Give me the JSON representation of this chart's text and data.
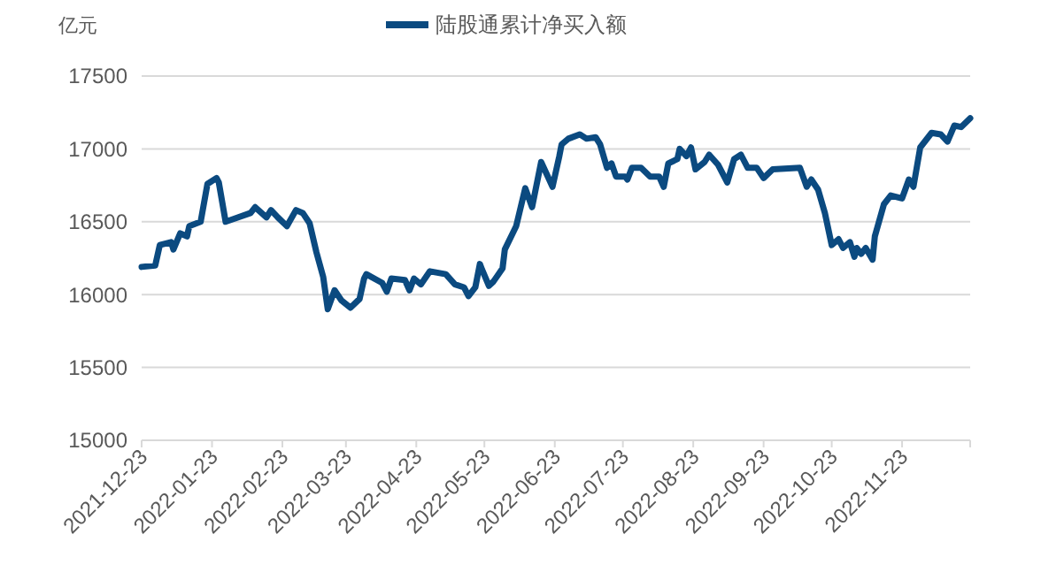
{
  "chart_data": {
    "type": "line",
    "ylabel": "亿元",
    "legend": "top",
    "grid": "y",
    "marker": "none",
    "line_style": "solid",
    "xlim": [
      "2021-12-23",
      "2022-12-23"
    ],
    "xticks": [
      {
        "value": "2021-12-23",
        "label": "2021-12-23"
      },
      {
        "value": "2022-01-23",
        "label": "2022-01-23"
      },
      {
        "value": "2022-02-23",
        "label": "2022-02-23"
      },
      {
        "value": "2022-03-23",
        "label": "2022-03-23"
      },
      {
        "value": "2022-04-23",
        "label": "2022-04-23"
      },
      {
        "value": "2022-05-23",
        "label": "2022-05-23"
      },
      {
        "value": "2022-06-23",
        "label": "2022-06-23"
      },
      {
        "value": "2022-07-23",
        "label": "2022-07-23"
      },
      {
        "value": "2022-08-23",
        "label": "2022-08-23"
      },
      {
        "value": "2022-09-23",
        "label": "2022-09-23"
      },
      {
        "value": "2022-10-23",
        "label": "2022-10-23"
      },
      {
        "value": "2022-11-23",
        "label": "2022-11-23"
      },
      {
        "value": "2022-12-23",
        "label": null
      }
    ],
    "ylim": [
      15000,
      17500
    ],
    "yticks": [
      15000,
      15500,
      16000,
      16500,
      17000,
      17500
    ],
    "x": [
      "2021-12-23",
      "2021-12-29",
      "2021-12-31",
      "2022-01-05",
      "2022-01-06",
      "2022-01-09",
      "2022-01-12",
      "2022-01-13",
      "2022-01-18",
      "2022-01-21",
      "2022-01-25",
      "2022-01-26",
      "2022-01-29",
      "2022-02-09",
      "2022-02-11",
      "2022-02-16",
      "2022-02-18",
      "2022-02-21",
      "2022-02-25",
      "2022-03-01",
      "2022-03-04",
      "2022-03-07",
      "2022-03-10",
      "2022-03-13",
      "2022-03-15",
      "2022-03-18",
      "2022-03-21",
      "2022-03-25",
      "2022-03-29",
      "2022-03-31",
      "2022-04-01",
      "2022-04-08",
      "2022-04-10",
      "2022-04-12",
      "2022-04-18",
      "2022-04-20",
      "2022-04-22",
      "2022-04-25",
      "2022-04-29",
      "2022-05-06",
      "2022-05-10",
      "2022-05-14",
      "2022-05-16",
      "2022-05-19",
      "2022-05-21",
      "2022-05-22",
      "2022-05-25",
      "2022-05-27",
      "2022-05-31",
      "2022-06-01",
      "2022-06-06",
      "2022-06-10",
      "2022-06-13",
      "2022-06-17",
      "2022-06-22",
      "2022-06-25",
      "2022-06-26",
      "2022-06-29",
      "2022-07-04",
      "2022-07-07",
      "2022-07-11",
      "2022-07-13",
      "2022-07-16",
      "2022-07-18",
      "2022-07-20",
      "2022-07-24",
      "2022-07-25",
      "2022-07-27",
      "2022-07-31",
      "2022-08-04",
      "2022-08-08",
      "2022-08-10",
      "2022-08-12",
      "2022-08-16",
      "2022-08-17",
      "2022-08-20",
      "2022-08-22",
      "2022-08-24",
      "2022-08-28",
      "2022-08-30",
      "2022-09-03",
      "2022-09-07",
      "2022-09-10",
      "2022-09-13",
      "2022-09-16",
      "2022-09-20",
      "2022-09-23",
      "2022-09-27",
      "2022-10-09",
      "2022-10-12",
      "2022-10-14",
      "2022-10-17",
      "2022-10-20",
      "2022-10-23",
      "2022-10-26",
      "2022-10-28",
      "2022-10-31",
      "2022-11-02",
      "2022-11-03",
      "2022-11-05",
      "2022-11-07",
      "2022-11-10",
      "2022-11-11",
      "2022-11-15",
      "2022-11-18",
      "2022-11-23",
      "2022-11-26",
      "2022-11-28",
      "2022-12-01",
      "2022-12-06",
      "2022-12-10",
      "2022-12-13",
      "2022-12-16",
      "2022-12-19",
      "2022-12-23"
    ],
    "series": [
      {
        "name": "陆股通累计净买入额",
        "color": "#0b4a80",
        "values": [
          16190,
          16200,
          16340,
          16360,
          16310,
          16420,
          16400,
          16470,
          16500,
          16760,
          16800,
          16770,
          16500,
          16560,
          16600,
          16530,
          16580,
          16530,
          16470,
          16580,
          16560,
          16490,
          16290,
          16120,
          15900,
          16030,
          15960,
          15910,
          15970,
          16110,
          16140,
          16080,
          16020,
          16110,
          16100,
          16030,
          16110,
          16070,
          16160,
          16140,
          16070,
          16050,
          15990,
          16050,
          16210,
          16170,
          16060,
          16090,
          16180,
          16310,
          16470,
          16730,
          16600,
          16910,
          16740,
          16950,
          17030,
          17070,
          17100,
          17070,
          17080,
          17030,
          16870,
          16900,
          16810,
          16810,
          16790,
          16870,
          16870,
          16810,
          16810,
          16740,
          16900,
          16930,
          17000,
          16950,
          17010,
          16860,
          16910,
          16960,
          16890,
          16770,
          16930,
          16960,
          16870,
          16870,
          16800,
          16860,
          16870,
          16740,
          16790,
          16720,
          16560,
          16340,
          16380,
          16320,
          16360,
          16260,
          16320,
          16280,
          16320,
          16240,
          16400,
          16620,
          16680,
          16660,
          16790,
          16740,
          17010,
          17110,
          17100,
          17050,
          17160,
          17150,
          17210
        ]
      }
    ]
  }
}
